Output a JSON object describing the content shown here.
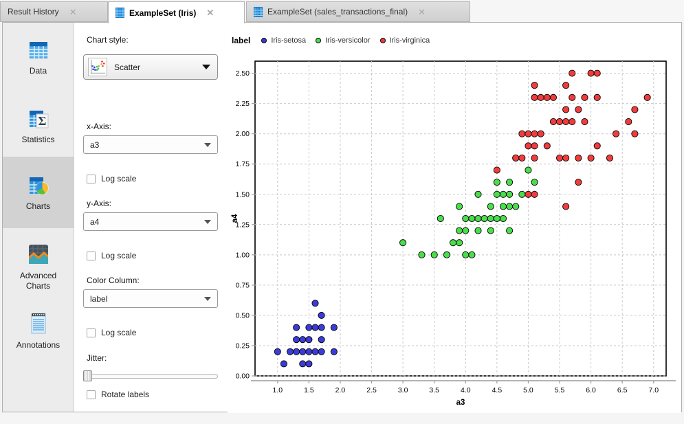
{
  "tabs": [
    {
      "label": "Result History"
    },
    {
      "label": "ExampleSet (Iris)"
    },
    {
      "label": "ExampleSet (sales_transactions_final)"
    }
  ],
  "close_glyph": "✕",
  "sidebar": {
    "items": [
      {
        "label": "Data"
      },
      {
        "label": "Statistics"
      },
      {
        "label": "Charts"
      },
      {
        "label": "Advanced"
      },
      {
        "label2_advanced": "Charts"
      },
      {
        "label": "Annotations"
      }
    ],
    "selected": "Charts"
  },
  "controls": {
    "chart_style": {
      "label": "Chart style:",
      "value": "Scatter"
    },
    "x_axis": {
      "label": "x-Axis:",
      "value": "a3",
      "log_label": "Log scale",
      "log_checked": false
    },
    "y_axis": {
      "label": "y-Axis:",
      "value": "a4",
      "log_label": "Log scale",
      "log_checked": false
    },
    "color_column": {
      "label": "Color Column:",
      "value": "label",
      "log_label": "Log scale",
      "log_checked": false
    },
    "jitter": {
      "label": "Jitter:",
      "value": 0,
      "min": 0,
      "max": 100
    },
    "rotate_labels": {
      "label": "Rotate labels",
      "checked": false
    }
  },
  "chart_data": {
    "type": "scatter",
    "title": "",
    "xlabel": "a3",
    "ylabel": "a4",
    "legend_title": "label",
    "legend_position": "top",
    "grid": true,
    "xlim": [
      0.64,
      7.2
    ],
    "ylim": [
      0,
      2.6
    ],
    "x_ticks": [
      1.0,
      1.5,
      2.0,
      2.5,
      3.0,
      3.5,
      4.0,
      4.5,
      5.0,
      5.5,
      6.0,
      6.5,
      7.0
    ],
    "x_tick_labels": [
      "1.0",
      "1.5",
      "2.0",
      "2.5",
      "3.0",
      "3.5",
      "4.0",
      "4.5",
      "5.0",
      "5.5",
      "6.0",
      "6.5",
      "7.0"
    ],
    "y_ticks": [
      0,
      0.25,
      0.5,
      0.75,
      1.0,
      1.25,
      1.5,
      1.75,
      2.0,
      2.25,
      2.5
    ],
    "y_tick_labels": [
      "0.00",
      "0.25",
      "0.50",
      "0.75",
      "1.00",
      "1.25",
      "1.50",
      "1.75",
      "2.00",
      "2.25",
      "2.50"
    ],
    "series": [
      {
        "name": "Iris-setosa",
        "color": "#3b3bd8",
        "points": [
          [
            1.0,
            0.2
          ],
          [
            1.1,
            0.1
          ],
          [
            1.2,
            0.2
          ],
          [
            1.3,
            0.2
          ],
          [
            1.3,
            0.3
          ],
          [
            1.3,
            0.4
          ],
          [
            1.4,
            0.1
          ],
          [
            1.4,
            0.2
          ],
          [
            1.4,
            0.3
          ],
          [
            1.5,
            0.1
          ],
          [
            1.5,
            0.2
          ],
          [
            1.5,
            0.3
          ],
          [
            1.5,
            0.4
          ],
          [
            1.6,
            0.2
          ],
          [
            1.6,
            0.4
          ],
          [
            1.6,
            0.6
          ],
          [
            1.7,
            0.2
          ],
          [
            1.7,
            0.3
          ],
          [
            1.7,
            0.4
          ],
          [
            1.7,
            0.5
          ],
          [
            1.9,
            0.2
          ],
          [
            1.9,
            0.4
          ]
        ]
      },
      {
        "name": "Iris-versicolor",
        "color": "#4ade4a",
        "points": [
          [
            3.0,
            1.1
          ],
          [
            3.3,
            1.0
          ],
          [
            3.5,
            1.0
          ],
          [
            3.6,
            1.3
          ],
          [
            3.7,
            1.0
          ],
          [
            3.8,
            1.1
          ],
          [
            3.9,
            1.1
          ],
          [
            3.9,
            1.2
          ],
          [
            3.9,
            1.4
          ],
          [
            4.0,
            1.0
          ],
          [
            4.0,
            1.2
          ],
          [
            4.0,
            1.3
          ],
          [
            4.1,
            1.0
          ],
          [
            4.1,
            1.3
          ],
          [
            4.2,
            1.2
          ],
          [
            4.2,
            1.3
          ],
          [
            4.2,
            1.5
          ],
          [
            4.3,
            1.3
          ],
          [
            4.4,
            1.2
          ],
          [
            4.4,
            1.3
          ],
          [
            4.4,
            1.4
          ],
          [
            4.5,
            1.3
          ],
          [
            4.5,
            1.5
          ],
          [
            4.5,
            1.6
          ],
          [
            4.6,
            1.3
          ],
          [
            4.6,
            1.4
          ],
          [
            4.6,
            1.5
          ],
          [
            4.7,
            1.2
          ],
          [
            4.7,
            1.4
          ],
          [
            4.7,
            1.5
          ],
          [
            4.7,
            1.6
          ],
          [
            4.8,
            1.4
          ],
          [
            4.8,
            1.8
          ],
          [
            4.9,
            1.5
          ],
          [
            5.0,
            1.7
          ],
          [
            5.1,
            1.6
          ]
        ]
      },
      {
        "name": "Iris-virginica",
        "color": "#f23c3c",
        "points": [
          [
            4.5,
            1.7
          ],
          [
            4.8,
            1.8
          ],
          [
            4.9,
            1.8
          ],
          [
            4.9,
            2.0
          ],
          [
            5.0,
            1.5
          ],
          [
            5.0,
            1.9
          ],
          [
            5.0,
            2.0
          ],
          [
            5.1,
            1.5
          ],
          [
            5.1,
            1.8
          ],
          [
            5.1,
            1.9
          ],
          [
            5.1,
            2.0
          ],
          [
            5.1,
            2.3
          ],
          [
            5.1,
            2.4
          ],
          [
            5.2,
            2.0
          ],
          [
            5.2,
            2.3
          ],
          [
            5.3,
            1.9
          ],
          [
            5.3,
            2.3
          ],
          [
            5.4,
            2.1
          ],
          [
            5.4,
            2.3
          ],
          [
            5.5,
            1.8
          ],
          [
            5.5,
            2.1
          ],
          [
            5.6,
            1.4
          ],
          [
            5.6,
            1.8
          ],
          [
            5.6,
            2.1
          ],
          [
            5.6,
            2.2
          ],
          [
            5.6,
            2.4
          ],
          [
            5.7,
            2.1
          ],
          [
            5.7,
            2.3
          ],
          [
            5.7,
            2.5
          ],
          [
            5.8,
            1.6
          ],
          [
            5.8,
            1.8
          ],
          [
            5.8,
            2.2
          ],
          [
            5.9,
            2.1
          ],
          [
            5.9,
            2.3
          ],
          [
            6.0,
            1.8
          ],
          [
            6.0,
            2.5
          ],
          [
            6.1,
            1.9
          ],
          [
            6.1,
            2.3
          ],
          [
            6.1,
            2.5
          ],
          [
            6.3,
            1.8
          ],
          [
            6.4,
            2.0
          ],
          [
            6.6,
            2.1
          ],
          [
            6.7,
            2.0
          ],
          [
            6.7,
            2.2
          ],
          [
            6.9,
            2.3
          ]
        ]
      }
    ],
    "colors": {
      "grid": "#c9c9c9",
      "plot_border": "#000000",
      "axis_line": "#9a9a9a"
    }
  }
}
